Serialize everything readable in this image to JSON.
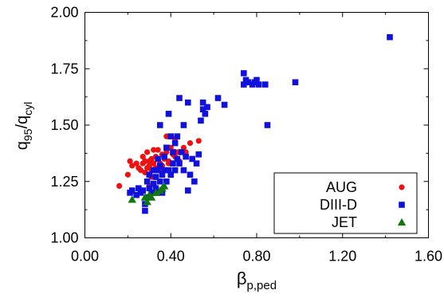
{
  "chart_data": {
    "type": "scatter",
    "xlabel": "β",
    "xlabel_sub": "p,ped",
    "ylabel_main": "q",
    "ylabel_sub1": "95",
    "ylabel_sep": "/q",
    "ylabel_sub2": "cyl",
    "xlim": [
      0.0,
      1.6
    ],
    "ylim": [
      1.0,
      2.0
    ],
    "xticks": [
      0.0,
      0.4,
      0.8,
      1.2,
      1.6
    ],
    "xtick_labels": [
      "0.00",
      "0.40",
      "0.80",
      "1.20",
      "1.60"
    ],
    "yticks": [
      1.0,
      1.25,
      1.5,
      1.75,
      2.0
    ],
    "ytick_labels": [
      "1.00",
      "1.25",
      "1.50",
      "1.75",
      "2.00"
    ],
    "grid": false,
    "legend_position": "bottom-right",
    "series": [
      {
        "name": "AUG",
        "marker": "circle",
        "color": "#ee1111",
        "points": [
          [
            0.16,
            1.23
          ],
          [
            0.2,
            1.28
          ],
          [
            0.21,
            1.34
          ],
          [
            0.22,
            1.32
          ],
          [
            0.24,
            1.33
          ],
          [
            0.25,
            1.31
          ],
          [
            0.26,
            1.3
          ],
          [
            0.27,
            1.33
          ],
          [
            0.28,
            1.34
          ],
          [
            0.28,
            1.29
          ],
          [
            0.29,
            1.38
          ],
          [
            0.29,
            1.31
          ],
          [
            0.3,
            1.34
          ],
          [
            0.3,
            1.32
          ],
          [
            0.31,
            1.35
          ],
          [
            0.31,
            1.3
          ],
          [
            0.32,
            1.39
          ],
          [
            0.32,
            1.33
          ],
          [
            0.33,
            1.36
          ],
          [
            0.33,
            1.31
          ],
          [
            0.34,
            1.39
          ],
          [
            0.34,
            1.35
          ],
          [
            0.35,
            1.33
          ],
          [
            0.36,
            1.37
          ],
          [
            0.36,
            1.32
          ],
          [
            0.37,
            1.35
          ],
          [
            0.38,
            1.45
          ],
          [
            0.38,
            1.38
          ],
          [
            0.39,
            1.34
          ],
          [
            0.4,
            1.4
          ],
          [
            0.41,
            1.37
          ],
          [
            0.42,
            1.44
          ],
          [
            0.42,
            1.36
          ],
          [
            0.43,
            1.38
          ],
          [
            0.44,
            1.34
          ],
          [
            0.46,
            1.4
          ],
          [
            0.47,
            1.38
          ],
          [
            0.49,
            1.42
          ],
          [
            0.53,
            1.43
          ],
          [
            0.39,
            1.33
          ],
          [
            0.31,
            1.27
          ],
          [
            0.27,
            1.36
          ],
          [
            0.35,
            1.3
          ],
          [
            0.3,
            1.23
          ]
        ]
      },
      {
        "name": "DIII-D",
        "marker": "square",
        "color": "#1111dd",
        "points": [
          [
            0.21,
            1.2
          ],
          [
            0.22,
            1.21
          ],
          [
            0.24,
            1.19
          ],
          [
            0.25,
            1.22
          ],
          [
            0.26,
            1.2
          ],
          [
            0.27,
            1.21
          ],
          [
            0.28,
            1.15
          ],
          [
            0.28,
            1.12
          ],
          [
            0.29,
            1.25
          ],
          [
            0.29,
            1.18
          ],
          [
            0.3,
            1.22
          ],
          [
            0.3,
            1.28
          ],
          [
            0.31,
            1.2
          ],
          [
            0.32,
            1.24
          ],
          [
            0.32,
            1.3
          ],
          [
            0.33,
            1.27
          ],
          [
            0.33,
            1.22
          ],
          [
            0.34,
            1.35
          ],
          [
            0.34,
            1.3
          ],
          [
            0.35,
            1.25
          ],
          [
            0.35,
            1.5
          ],
          [
            0.35,
            1.32
          ],
          [
            0.36,
            1.28
          ],
          [
            0.36,
            1.2
          ],
          [
            0.37,
            1.3
          ],
          [
            0.37,
            1.36
          ],
          [
            0.38,
            1.25
          ],
          [
            0.38,
            1.4
          ],
          [
            0.39,
            1.3
          ],
          [
            0.39,
            1.55
          ],
          [
            0.4,
            1.28
          ],
          [
            0.4,
            1.45
          ],
          [
            0.41,
            1.33
          ],
          [
            0.41,
            1.38
          ],
          [
            0.42,
            1.42
          ],
          [
            0.42,
            1.3
          ],
          [
            0.43,
            1.45
          ],
          [
            0.43,
            1.35
          ],
          [
            0.44,
            1.62
          ],
          [
            0.44,
            1.33
          ],
          [
            0.45,
            1.38
          ],
          [
            0.46,
            1.5
          ],
          [
            0.46,
            1.3
          ],
          [
            0.47,
            1.36
          ],
          [
            0.48,
            1.6
          ],
          [
            0.48,
            1.21
          ],
          [
            0.49,
            1.28
          ],
          [
            0.5,
            1.35
          ],
          [
            0.51,
            1.25
          ],
          [
            0.52,
            1.33
          ],
          [
            0.53,
            1.37
          ],
          [
            0.54,
            1.52
          ],
          [
            0.55,
            1.57
          ],
          [
            0.55,
            1.6
          ],
          [
            0.56,
            1.55
          ],
          [
            0.57,
            1.58
          ],
          [
            0.62,
            1.62
          ],
          [
            0.65,
            1.59
          ],
          [
            0.74,
            1.68
          ],
          [
            0.74,
            1.73
          ],
          [
            0.75,
            1.7
          ],
          [
            0.76,
            1.69
          ],
          [
            0.78,
            1.68
          ],
          [
            0.79,
            1.69
          ],
          [
            0.8,
            1.7
          ],
          [
            0.81,
            1.68
          ],
          [
            0.84,
            1.68
          ],
          [
            0.85,
            1.5
          ],
          [
            0.98,
            1.69
          ],
          [
            1.42,
            1.89
          ]
        ]
      },
      {
        "name": "JET",
        "marker": "triangle",
        "color": "#117711",
        "points": [
          [
            0.22,
            1.17
          ],
          [
            0.28,
            1.18
          ],
          [
            0.29,
            1.16
          ],
          [
            0.3,
            1.19
          ],
          [
            0.31,
            1.18
          ],
          [
            0.33,
            1.2
          ],
          [
            0.35,
            1.21
          ],
          [
            0.36,
            1.22
          ],
          [
            0.37,
            1.23
          ]
        ]
      }
    ]
  }
}
